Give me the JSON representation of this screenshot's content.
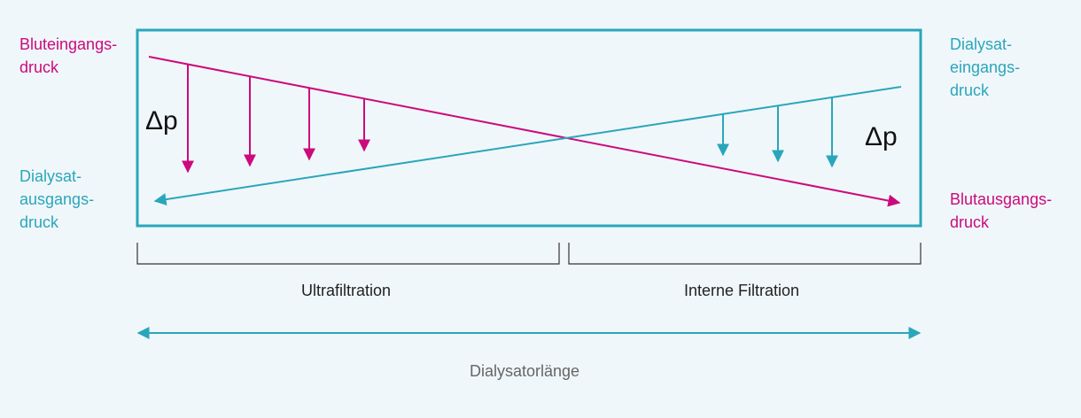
{
  "labels": {
    "blood_inlet": [
      "Bluteingangs-",
      "druck"
    ],
    "blood_outlet": [
      "Blutausgangs-",
      "druck"
    ],
    "dialysate_inlet": [
      "Dialysat-",
      "eingangs-",
      "druck"
    ],
    "dialysate_outlet": [
      "Dialysat-",
      "ausgangs-",
      "druck"
    ],
    "delta_left": "Δp",
    "delta_right": "Δp",
    "section_left": "Ultrafiltration",
    "section_right": "Interne Filtration",
    "length_axis": "Dialysatorlänge"
  },
  "colors": {
    "blood": "#cc0a7d",
    "dialysate": "#2aa6bb",
    "background": "#f0f7fa",
    "text_dark": "#222222",
    "text_grey": "#666666"
  }
}
